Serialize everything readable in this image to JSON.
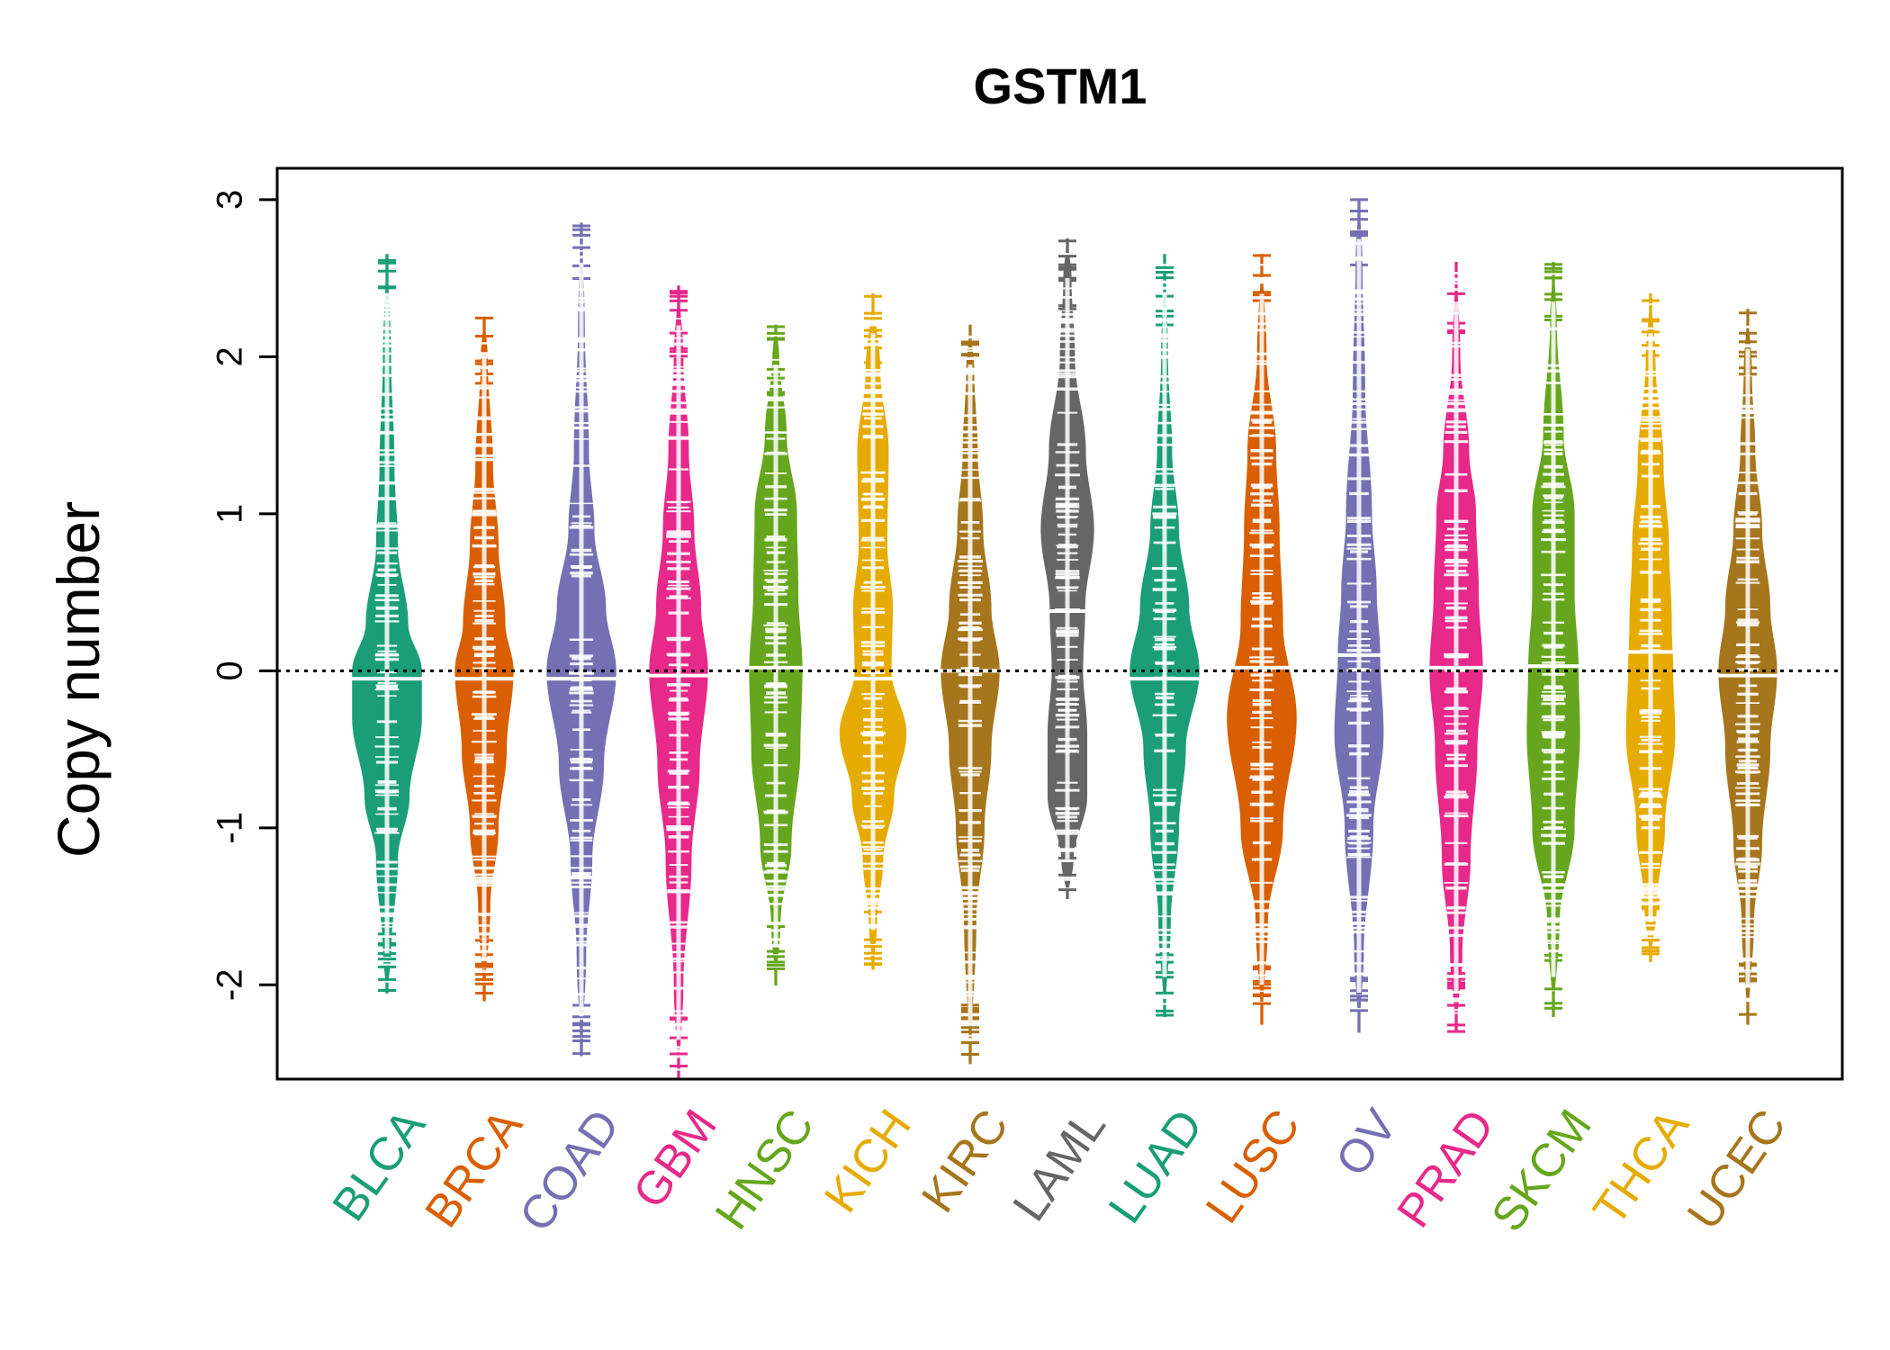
{
  "chart_data": {
    "type": "beanplot",
    "title": "GSTM1",
    "ylabel": "Copy number",
    "xlabel": "",
    "ylim": [
      -2.6,
      3.2
    ],
    "yticks": [
      -2,
      -1,
      0,
      1,
      2,
      3
    ],
    "reference_line": 0,
    "grid": false,
    "legend": "none",
    "categories": [
      "BLCA",
      "BRCA",
      "COAD",
      "GBM",
      "HNSC",
      "KICH",
      "KIRC",
      "LAML",
      "LUAD",
      "LUSC",
      "OV",
      "PRAD",
      "SKCM",
      "THCA",
      "UCEC"
    ],
    "colors": [
      "#1B9E77",
      "#D95F02",
      "#7570B3",
      "#E7298A",
      "#66A61E",
      "#E6AB02",
      "#A6761D",
      "#666666",
      "#1B9E77",
      "#D95F02",
      "#7570B3",
      "#E7298A",
      "#66A61E",
      "#E6AB02",
      "#A6761D"
    ],
    "medians": [
      -0.05,
      -0.05,
      -0.05,
      -0.03,
      0.02,
      -0.05,
      0.0,
      0.38,
      -0.05,
      0.02,
      0.1,
      0.02,
      0.03,
      0.12,
      -0.03
    ],
    "beans": [
      {
        "min": -2.05,
        "max": 2.65,
        "density": [
          [
            -1.8,
            0.05
          ],
          [
            -1.2,
            0.15
          ],
          [
            -0.8,
            0.32
          ],
          [
            -0.3,
            0.5
          ],
          [
            0.0,
            0.5
          ],
          [
            0.3,
            0.3
          ],
          [
            0.8,
            0.15
          ],
          [
            1.3,
            0.1
          ],
          [
            2.0,
            0.05
          ]
        ]
      },
      {
        "min": -2.1,
        "max": 2.25,
        "density": [
          [
            -1.5,
            0.08
          ],
          [
            -1.0,
            0.2
          ],
          [
            -0.5,
            0.32
          ],
          [
            0.0,
            0.42
          ],
          [
            0.3,
            0.3
          ],
          [
            0.8,
            0.2
          ],
          [
            1.3,
            0.12
          ],
          [
            2.0,
            0.04
          ]
        ]
      },
      {
        "min": -2.45,
        "max": 2.85,
        "density": [
          [
            -1.8,
            0.06
          ],
          [
            -1.2,
            0.15
          ],
          [
            -0.6,
            0.32
          ],
          [
            0.0,
            0.5
          ],
          [
            0.4,
            0.35
          ],
          [
            0.9,
            0.18
          ],
          [
            1.4,
            0.1
          ],
          [
            2.2,
            0.04
          ]
        ]
      },
      {
        "min": -2.6,
        "max": 2.45,
        "density": [
          [
            -2.0,
            0.06
          ],
          [
            -1.2,
            0.18
          ],
          [
            -0.6,
            0.3
          ],
          [
            0.0,
            0.42
          ],
          [
            0.4,
            0.32
          ],
          [
            0.9,
            0.22
          ],
          [
            1.4,
            0.14
          ],
          [
            2.0,
            0.06
          ]
        ]
      },
      {
        "min": -2.0,
        "max": 2.2,
        "density": [
          [
            -1.6,
            0.06
          ],
          [
            -1.1,
            0.22
          ],
          [
            -0.5,
            0.35
          ],
          [
            0.0,
            0.38
          ],
          [
            0.5,
            0.32
          ],
          [
            1.0,
            0.3
          ],
          [
            1.5,
            0.15
          ],
          [
            2.0,
            0.04
          ]
        ]
      },
      {
        "min": -1.9,
        "max": 2.4,
        "density": [
          [
            -1.6,
            0.05
          ],
          [
            -1.2,
            0.14
          ],
          [
            -0.8,
            0.3
          ],
          [
            -0.4,
            0.48
          ],
          [
            0.0,
            0.26
          ],
          [
            0.4,
            0.28
          ],
          [
            0.8,
            0.2
          ],
          [
            1.4,
            0.22
          ],
          [
            1.9,
            0.1
          ]
        ]
      },
      {
        "min": -2.5,
        "max": 2.2,
        "density": [
          [
            -1.6,
            0.08
          ],
          [
            -1.0,
            0.2
          ],
          [
            -0.5,
            0.3
          ],
          [
            0.0,
            0.42
          ],
          [
            0.4,
            0.3
          ],
          [
            0.9,
            0.18
          ],
          [
            1.4,
            0.1
          ],
          [
            1.9,
            0.05
          ]
        ]
      },
      {
        "min": -1.45,
        "max": 2.75,
        "density": [
          [
            -1.2,
            0.08
          ],
          [
            -0.8,
            0.28
          ],
          [
            -0.4,
            0.28
          ],
          [
            0.0,
            0.22
          ],
          [
            0.4,
            0.25
          ],
          [
            0.9,
            0.38
          ],
          [
            1.4,
            0.26
          ],
          [
            2.0,
            0.1
          ],
          [
            2.5,
            0.05
          ]
        ]
      },
      {
        "min": -2.2,
        "max": 2.65,
        "density": [
          [
            -1.6,
            0.08
          ],
          [
            -1.0,
            0.2
          ],
          [
            -0.5,
            0.3
          ],
          [
            0.0,
            0.5
          ],
          [
            0.4,
            0.35
          ],
          [
            0.9,
            0.2
          ],
          [
            1.4,
            0.1
          ],
          [
            2.0,
            0.04
          ]
        ]
      },
      {
        "min": -2.25,
        "max": 2.65,
        "density": [
          [
            -1.6,
            0.08
          ],
          [
            -1.0,
            0.3
          ],
          [
            -0.3,
            0.5
          ],
          [
            0.3,
            0.3
          ],
          [
            0.9,
            0.25
          ],
          [
            1.4,
            0.2
          ],
          [
            2.0,
            0.06
          ]
        ]
      },
      {
        "min": -2.3,
        "max": 3.0,
        "density": [
          [
            -1.8,
            0.06
          ],
          [
            -1.0,
            0.2
          ],
          [
            -0.4,
            0.35
          ],
          [
            0.1,
            0.3
          ],
          [
            0.5,
            0.25
          ],
          [
            1.0,
            0.18
          ],
          [
            1.8,
            0.08
          ],
          [
            2.6,
            0.04
          ]
        ]
      },
      {
        "min": -2.3,
        "max": 2.6,
        "density": [
          [
            -1.8,
            0.08
          ],
          [
            -1.2,
            0.2
          ],
          [
            -0.5,
            0.3
          ],
          [
            0.0,
            0.38
          ],
          [
            0.5,
            0.32
          ],
          [
            1.0,
            0.28
          ],
          [
            1.4,
            0.18
          ],
          [
            2.0,
            0.05
          ]
        ]
      },
      {
        "min": -2.2,
        "max": 2.6,
        "density": [
          [
            -1.6,
            0.08
          ],
          [
            -1.0,
            0.3
          ],
          [
            -0.4,
            0.38
          ],
          [
            0.0,
            0.36
          ],
          [
            0.5,
            0.3
          ],
          [
            1.0,
            0.3
          ],
          [
            1.5,
            0.14
          ],
          [
            2.2,
            0.04
          ]
        ]
      },
      {
        "min": -1.85,
        "max": 2.4,
        "density": [
          [
            -1.5,
            0.08
          ],
          [
            -1.0,
            0.2
          ],
          [
            -0.4,
            0.35
          ],
          [
            0.0,
            0.32
          ],
          [
            0.3,
            0.3
          ],
          [
            0.8,
            0.26
          ],
          [
            1.3,
            0.18
          ],
          [
            2.0,
            0.06
          ]
        ]
      },
      {
        "min": -2.25,
        "max": 2.3,
        "density": [
          [
            -1.6,
            0.08
          ],
          [
            -1.1,
            0.2
          ],
          [
            -0.5,
            0.32
          ],
          [
            0.0,
            0.42
          ],
          [
            0.4,
            0.32
          ],
          [
            0.9,
            0.2
          ],
          [
            1.4,
            0.1
          ],
          [
            1.9,
            0.05
          ]
        ]
      }
    ]
  }
}
